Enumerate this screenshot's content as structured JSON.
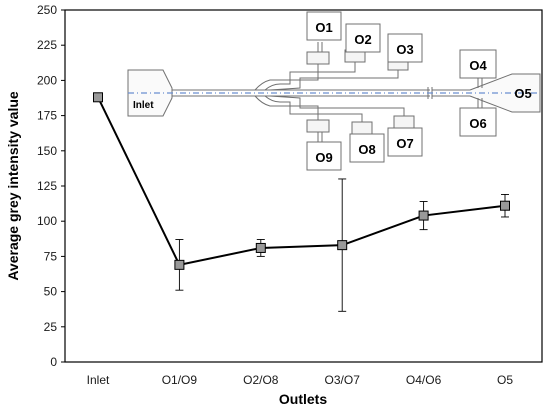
{
  "chart_data": {
    "type": "line",
    "title": "",
    "xlabel": "Outlets",
    "ylabel": "Average grey intensity value",
    "categories": [
      "Inlet",
      "O1/O9",
      "O2/O8",
      "O3/O7",
      "O4/O6",
      "O5"
    ],
    "series": [
      {
        "values": [
          188,
          69,
          81,
          83,
          104,
          111
        ],
        "error": [
          0,
          18,
          6,
          47,
          10,
          8
        ],
        "marker": "square",
        "line_color": "#000000",
        "marker_color": "#999999"
      }
    ],
    "ylim": [
      0,
      250
    ],
    "yticks": [
      0,
      25,
      50,
      75,
      100,
      125,
      150,
      175,
      200,
      225,
      250
    ],
    "grid": false,
    "legend": "none"
  },
  "inset": {
    "description_labels": {
      "inlet": "Inlet",
      "outlets": [
        "O1",
        "O2",
        "O3",
        "O4",
        "O5",
        "O6",
        "O7",
        "O8",
        "O9"
      ]
    },
    "colors": {
      "stroke": "#707070",
      "centerline": "#6a8fd0"
    }
  }
}
